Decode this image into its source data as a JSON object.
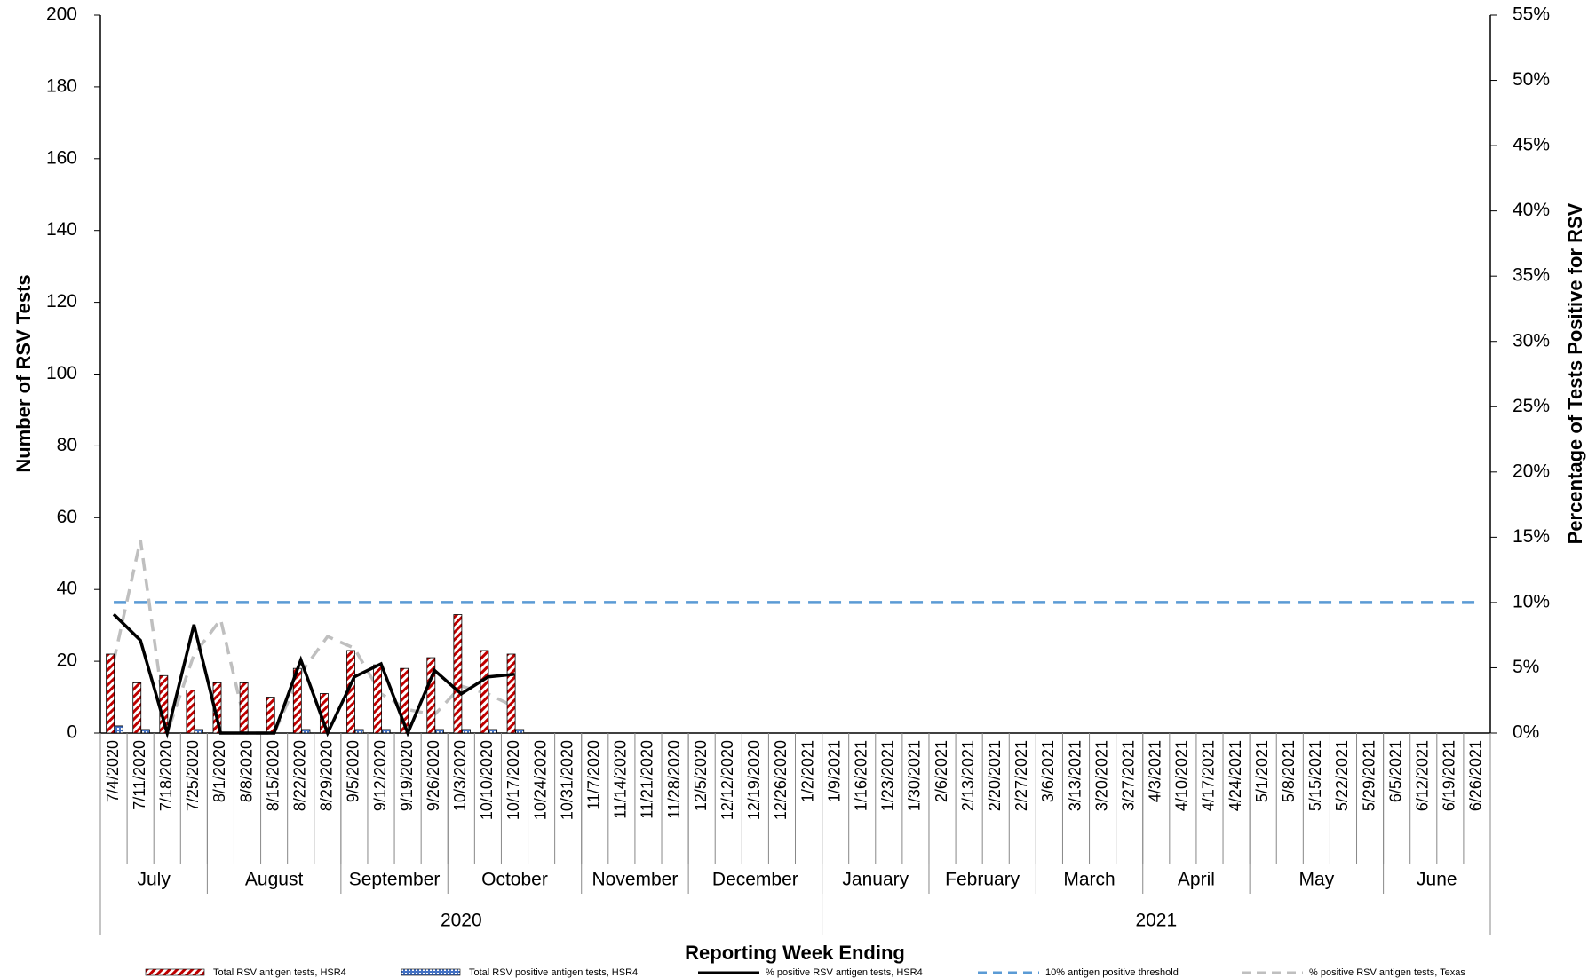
{
  "chart_data": {
    "type": "bar-line",
    "y_label": "Number of RSV Tests",
    "y2_label": "Percentage of Tests Positive for RSV",
    "x_label": "Reporting Week Ending",
    "categories": [
      "7/4/2020",
      "7/11/2020",
      "7/18/2020",
      "7/25/2020",
      "8/1/2020",
      "8/8/2020",
      "8/15/2020",
      "8/22/2020",
      "8/29/2020",
      "9/5/2020",
      "9/12/2020",
      "9/19/2020",
      "9/26/2020",
      "10/3/2020",
      "10/10/2020",
      "10/17/2020",
      "10/24/2020",
      "10/31/2020",
      "11/7/2020",
      "11/14/2020",
      "11/21/2020",
      "11/28/2020",
      "12/5/2020",
      "12/12/2020",
      "12/19/2020",
      "12/26/2020",
      "1/2/2021",
      "1/9/2021",
      "1/16/2021",
      "1/23/2021",
      "1/30/2021",
      "2/6/2021",
      "2/13/2021",
      "2/20/2021",
      "2/27/2021",
      "3/6/2021",
      "3/13/2021",
      "3/20/2021",
      "3/27/2021",
      "4/3/2021",
      "4/10/2021",
      "4/17/2021",
      "4/24/2021",
      "5/1/2021",
      "5/8/2021",
      "5/15/2021",
      "5/22/2021",
      "5/29/2021",
      "6/5/2021",
      "6/12/2021",
      "6/19/2021",
      "6/26/2021"
    ],
    "month_groups": [
      {
        "label": "July",
        "weeks": 4
      },
      {
        "label": "August",
        "weeks": 5
      },
      {
        "label": "September",
        "weeks": 4
      },
      {
        "label": "October",
        "weeks": 5
      },
      {
        "label": "November",
        "weeks": 4
      },
      {
        "label": "December",
        "weeks": 5
      },
      {
        "label": "January",
        "weeks": 4
      },
      {
        "label": "February",
        "weeks": 4
      },
      {
        "label": "March",
        "weeks": 4
      },
      {
        "label": "April",
        "weeks": 4
      },
      {
        "label": "May",
        "weeks": 5
      },
      {
        "label": "June",
        "weeks": 4
      }
    ],
    "year_groups": [
      {
        "label": "2020",
        "weeks": 27
      },
      {
        "label": "2021",
        "weeks": 25
      }
    ],
    "series": [
      {
        "name": "Total RSV antigen tests, HSR4",
        "kind": "bar",
        "color": "#c00000",
        "values": [
          22,
          14,
          16,
          12,
          14,
          14,
          10,
          18,
          11,
          23,
          19,
          18,
          21,
          33,
          23,
          22,
          null,
          null,
          null,
          null,
          null,
          null,
          null,
          null,
          null,
          null,
          null,
          null,
          null,
          null,
          null,
          null,
          null,
          null,
          null,
          null,
          null,
          null,
          null,
          null,
          null,
          null,
          null,
          null,
          null,
          null,
          null,
          null,
          null,
          null,
          null,
          null
        ]
      },
      {
        "name": "Total RSV positive antigen tests, HSR4",
        "kind": "bar",
        "color": "#4472c4",
        "values": [
          2,
          1,
          0,
          1,
          0,
          0,
          0,
          1,
          0,
          1,
          1,
          0,
          1,
          1,
          1,
          1,
          null,
          null,
          null,
          null,
          null,
          null,
          null,
          null,
          null,
          null,
          null,
          null,
          null,
          null,
          null,
          null,
          null,
          null,
          null,
          null,
          null,
          null,
          null,
          null,
          null,
          null,
          null,
          null,
          null,
          null,
          null,
          null,
          null,
          null,
          null,
          null
        ]
      },
      {
        "name": "% positive RSV antigen tests, HSR4",
        "kind": "line",
        "axis": "y2",
        "color": "#000000",
        "values": [
          9.1,
          7.1,
          0,
          8.3,
          0,
          0,
          0,
          5.6,
          0,
          4.3,
          5.3,
          0,
          4.8,
          3.0,
          4.3,
          4.5,
          null,
          null,
          null,
          null,
          null,
          null,
          null,
          null,
          null,
          null,
          null,
          null,
          null,
          null,
          null,
          null,
          null,
          null,
          null,
          null,
          null,
          null,
          null,
          null,
          null,
          null,
          null,
          null,
          null,
          null,
          null,
          null,
          null,
          null,
          null,
          null
        ]
      },
      {
        "name": "10% antigen positive threshold",
        "kind": "dashed",
        "axis": "y2",
        "color": "#5b9bd5",
        "values": [
          10,
          10,
          10,
          10,
          10,
          10,
          10,
          10,
          10,
          10,
          10,
          10,
          10,
          10,
          10,
          10,
          10,
          10,
          10,
          10,
          10,
          10,
          10,
          10,
          10,
          10,
          10,
          10,
          10,
          10,
          10,
          10,
          10,
          10,
          10,
          10,
          10,
          10,
          10,
          10,
          10,
          10,
          10,
          10,
          10,
          10,
          10,
          10,
          10,
          10,
          10,
          10
        ]
      },
      {
        "name": "% positive RSV antigen tests, Texas",
        "kind": "dashed",
        "axis": "y2",
        "color": "#bfbfbf",
        "values": [
          5.5,
          14.8,
          0,
          6,
          8.7,
          0,
          0,
          4.6,
          7.4,
          6.5,
          3.0,
          1.8,
          1.4,
          3.6,
          3.0,
          2.0,
          null,
          null,
          null,
          null,
          null,
          null,
          null,
          null,
          null,
          null,
          null,
          null,
          null,
          null,
          null,
          null,
          null,
          null,
          null,
          null,
          null,
          null,
          null,
          null,
          null,
          null,
          null,
          null,
          null,
          null,
          null,
          null,
          null,
          null,
          null,
          null
        ]
      }
    ],
    "ylim": [
      0,
      200
    ],
    "yticks": [
      0,
      20,
      40,
      60,
      80,
      100,
      120,
      140,
      160,
      180,
      200
    ],
    "y2lim": [
      0,
      55
    ],
    "y2ticks": [
      {
        "value": 0,
        "label": "0%"
      },
      {
        "value": 5,
        "label": "5%"
      },
      {
        "value": 10,
        "label": "10%"
      },
      {
        "value": 15,
        "label": "15%"
      },
      {
        "value": 20,
        "label": "20%"
      },
      {
        "value": 25,
        "label": "25%"
      },
      {
        "value": 30,
        "label": "30%"
      },
      {
        "value": 35,
        "label": "35%"
      },
      {
        "value": 40,
        "label": "40%"
      },
      {
        "value": 45,
        "label": "45%"
      },
      {
        "value": 50,
        "label": "50%"
      },
      {
        "value": 55,
        "label": "55%"
      }
    ],
    "grid": false
  }
}
